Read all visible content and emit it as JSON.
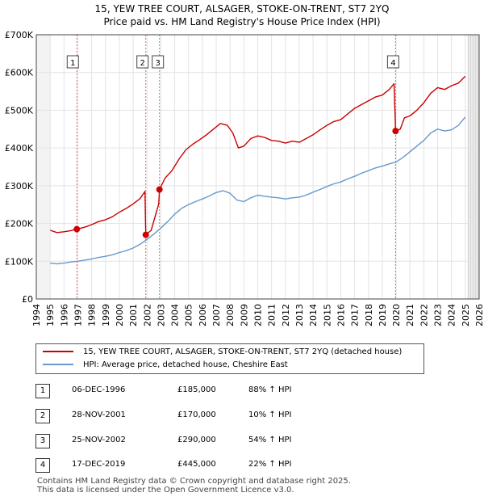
{
  "title_line1": "15, YEW TREE COURT, ALSAGER, STOKE-ON-TRENT, ST7 2YQ",
  "title_line2": "Price paid vs. HM Land Registry's House Price Index (HPI)",
  "colors": {
    "property": "#cc0000",
    "hpi": "#6699cc",
    "marker_line": "#dd6666",
    "future": "#cccccc"
  },
  "chart_data": {
    "type": "line",
    "xlim": [
      1994,
      2026
    ],
    "ylim": [
      0,
      700000
    ],
    "y_ticks": [
      {
        "value": 0,
        "label": "£0"
      },
      {
        "value": 100000,
        "label": "£100K"
      },
      {
        "value": 200000,
        "label": "£200K"
      },
      {
        "value": 300000,
        "label": "£300K"
      },
      {
        "value": 400000,
        "label": "£400K"
      },
      {
        "value": 500000,
        "label": "£500K"
      },
      {
        "value": 600000,
        "label": "£600K"
      },
      {
        "value": 700000,
        "label": "£700K"
      }
    ],
    "x_ticks": [
      "1994",
      "1995",
      "1996",
      "1997",
      "1998",
      "1999",
      "2000",
      "2001",
      "2002",
      "2003",
      "2004",
      "2005",
      "2006",
      "2007",
      "2008",
      "2009",
      "2010",
      "2011",
      "2012",
      "2013",
      "2014",
      "2015",
      "2016",
      "2017",
      "2018",
      "2019",
      "2020",
      "2021",
      "2022",
      "2023",
      "2024",
      "2025",
      "2026"
    ],
    "data_start": 1995.0,
    "data_end": 2025.2,
    "series": [
      {
        "name": "15, YEW TREE COURT, ALSAGER, STOKE-ON-TRENT, ST7 2YQ (detached house)",
        "color": "#cc0000",
        "points": [
          [
            1995.0,
            182000
          ],
          [
            1995.5,
            176000
          ],
          [
            1996.0,
            178000
          ],
          [
            1996.5,
            181000
          ],
          [
            1996.93,
            185000
          ],
          [
            1997.5,
            190000
          ],
          [
            1998.0,
            197000
          ],
          [
            1998.5,
            205000
          ],
          [
            1999.0,
            210000
          ],
          [
            1999.5,
            218000
          ],
          [
            2000.0,
            230000
          ],
          [
            2000.5,
            240000
          ],
          [
            2001.0,
            252000
          ],
          [
            2001.5,
            266000
          ],
          [
            2001.85,
            285000
          ],
          [
            2001.91,
            170000
          ],
          [
            2002.3,
            182000
          ],
          [
            2002.85,
            252000
          ],
          [
            2002.9,
            290000
          ],
          [
            2003.3,
            320000
          ],
          [
            2003.8,
            340000
          ],
          [
            2004.3,
            370000
          ],
          [
            2004.8,
            395000
          ],
          [
            2005.3,
            410000
          ],
          [
            2005.8,
            422000
          ],
          [
            2006.3,
            435000
          ],
          [
            2006.8,
            450000
          ],
          [
            2007.3,
            465000
          ],
          [
            2007.8,
            460000
          ],
          [
            2008.2,
            440000
          ],
          [
            2008.6,
            400000
          ],
          [
            2009.0,
            405000
          ],
          [
            2009.5,
            425000
          ],
          [
            2010.0,
            432000
          ],
          [
            2010.5,
            428000
          ],
          [
            2011.0,
            420000
          ],
          [
            2011.5,
            418000
          ],
          [
            2012.0,
            413000
          ],
          [
            2012.5,
            418000
          ],
          [
            2013.0,
            415000
          ],
          [
            2013.5,
            425000
          ],
          [
            2014.0,
            435000
          ],
          [
            2014.5,
            448000
          ],
          [
            2015.0,
            460000
          ],
          [
            2015.5,
            470000
          ],
          [
            2016.0,
            475000
          ],
          [
            2016.5,
            490000
          ],
          [
            2017.0,
            505000
          ],
          [
            2017.5,
            515000
          ],
          [
            2018.0,
            525000
          ],
          [
            2018.5,
            535000
          ],
          [
            2019.0,
            540000
          ],
          [
            2019.5,
            555000
          ],
          [
            2019.85,
            570000
          ],
          [
            2019.96,
            445000
          ],
          [
            2020.3,
            450000
          ],
          [
            2020.6,
            480000
          ],
          [
            2021.0,
            485000
          ],
          [
            2021.5,
            500000
          ],
          [
            2022.0,
            520000
          ],
          [
            2022.5,
            545000
          ],
          [
            2023.0,
            560000
          ],
          [
            2023.5,
            555000
          ],
          [
            2024.0,
            565000
          ],
          [
            2024.5,
            572000
          ],
          [
            2025.0,
            590000
          ]
        ]
      },
      {
        "name": "HPI: Average price, detached house, Cheshire East",
        "color": "#6699cc",
        "points": [
          [
            1995.0,
            95000
          ],
          [
            1995.5,
            93000
          ],
          [
            1996.0,
            95000
          ],
          [
            1996.5,
            98000
          ],
          [
            1997.0,
            100000
          ],
          [
            1997.5,
            103000
          ],
          [
            1998.0,
            106000
          ],
          [
            1998.5,
            110000
          ],
          [
            1999.0,
            113000
          ],
          [
            1999.5,
            117000
          ],
          [
            2000.0,
            123000
          ],
          [
            2000.5,
            128000
          ],
          [
            2001.0,
            135000
          ],
          [
            2001.5,
            145000
          ],
          [
            2002.0,
            158000
          ],
          [
            2002.5,
            172000
          ],
          [
            2003.0,
            188000
          ],
          [
            2003.5,
            205000
          ],
          [
            2004.0,
            225000
          ],
          [
            2004.5,
            240000
          ],
          [
            2005.0,
            250000
          ],
          [
            2005.5,
            258000
          ],
          [
            2006.0,
            265000
          ],
          [
            2006.5,
            273000
          ],
          [
            2007.0,
            282000
          ],
          [
            2007.5,
            287000
          ],
          [
            2008.0,
            280000
          ],
          [
            2008.5,
            262000
          ],
          [
            2009.0,
            258000
          ],
          [
            2009.5,
            268000
          ],
          [
            2010.0,
            275000
          ],
          [
            2010.5,
            272000
          ],
          [
            2011.0,
            270000
          ],
          [
            2011.5,
            268000
          ],
          [
            2012.0,
            265000
          ],
          [
            2012.5,
            268000
          ],
          [
            2013.0,
            270000
          ],
          [
            2013.5,
            275000
          ],
          [
            2014.0,
            283000
          ],
          [
            2014.5,
            290000
          ],
          [
            2015.0,
            298000
          ],
          [
            2015.5,
            305000
          ],
          [
            2016.0,
            310000
          ],
          [
            2016.5,
            318000
          ],
          [
            2017.0,
            325000
          ],
          [
            2017.5,
            333000
          ],
          [
            2018.0,
            340000
          ],
          [
            2018.5,
            347000
          ],
          [
            2019.0,
            352000
          ],
          [
            2019.5,
            358000
          ],
          [
            2020.0,
            363000
          ],
          [
            2020.5,
            375000
          ],
          [
            2021.0,
            390000
          ],
          [
            2021.5,
            405000
          ],
          [
            2022.0,
            420000
          ],
          [
            2022.5,
            440000
          ],
          [
            2023.0,
            450000
          ],
          [
            2023.5,
            445000
          ],
          [
            2024.0,
            448000
          ],
          [
            2024.5,
            460000
          ],
          [
            2025.0,
            482000
          ]
        ]
      }
    ],
    "sales": [
      {
        "id": "1",
        "date": "06-DEC-1996",
        "price": "£185,000",
        "hpi": "88% ↑ HPI",
        "x": 1996.93,
        "y": 185000
      },
      {
        "id": "2",
        "date": "28-NOV-2001",
        "price": "£170,000",
        "hpi": "10% ↑ HPI",
        "x": 2001.91,
        "y": 170000
      },
      {
        "id": "3",
        "date": "25-NOV-2002",
        "price": "£290,000",
        "hpi": "54% ↑ HPI",
        "x": 2002.9,
        "y": 290000
      },
      {
        "id": "4",
        "date": "17-DEC-2019",
        "price": "£445,000",
        "hpi": "22% ↑ HPI",
        "x": 2019.96,
        "y": 445000
      }
    ]
  },
  "legend": {
    "property_label": "15, YEW TREE COURT, ALSAGER, STOKE-ON-TRENT, ST7 2YQ (detached house)",
    "hpi_label": "HPI: Average price, detached house, Cheshire East"
  },
  "footer_line1": "Contains HM Land Registry data © Crown copyright and database right 2025.",
  "footer_line2": "This data is licensed under the Open Government Licence v3.0."
}
